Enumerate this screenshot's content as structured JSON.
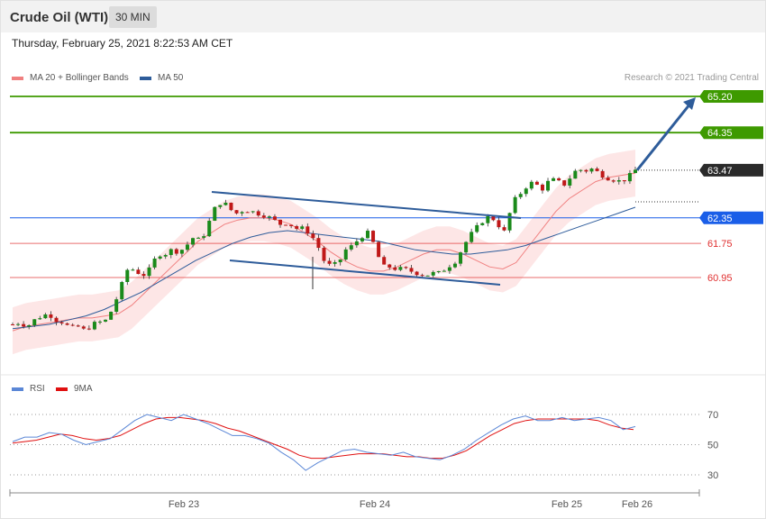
{
  "header": {
    "title": "Crude Oil (WTI)",
    "timeframe": "30 MIN"
  },
  "timestamp": "Thursday, February 25, 2021 8:22:53 AM CET",
  "legend": {
    "ma20": {
      "label": "MA 20 + Bollinger Bands",
      "color": "#f08080"
    },
    "ma50": {
      "label": "MA 50",
      "color": "#2e5c9a"
    }
  },
  "credit": "Research © 2021 Trading Central",
  "rsi_legend": {
    "rsi": {
      "label": "RSI",
      "color": "#5b87d6"
    },
    "ma9": {
      "label": "9MA",
      "color": "#e01010"
    }
  },
  "chart_data": {
    "type": "candlestick",
    "instrument": "Crude Oil (WTI)",
    "timeframe": "30 MIN",
    "current_price": 63.47,
    "levels": [
      {
        "value": 65.2,
        "label": "65.20",
        "kind": "resistance",
        "color": "#3e9a00"
      },
      {
        "value": 64.35,
        "label": "64.35",
        "kind": "resistance",
        "color": "#3e9a00"
      },
      {
        "value": 63.47,
        "label": "63.47",
        "kind": "last",
        "color": "#2a2a2a"
      },
      {
        "value": 62.35,
        "label": "62.35",
        "kind": "pivot",
        "color": "#1a5ee8"
      },
      {
        "value": 61.75,
        "label": "61.75",
        "kind": "support",
        "color": "#e03030"
      },
      {
        "value": 60.95,
        "label": "60.95",
        "kind": "support",
        "color": "#e03030"
      }
    ],
    "x_tick_labels": [
      "Feb 23",
      "Feb 24",
      "Feb 25",
      "Feb 26"
    ],
    "y_range": [
      58.6,
      66.2
    ],
    "close_path": [
      59.85,
      59.9,
      59.8,
      59.95,
      60.05,
      60.1,
      59.95,
      59.9,
      59.75,
      59.8,
      59.7,
      59.85,
      59.9,
      59.95,
      60.3,
      60.75,
      61.2,
      61.1,
      61.0,
      61.15,
      61.5,
      61.5,
      61.6,
      61.55,
      61.7,
      61.9,
      61.8,
      62.2,
      62.6,
      62.75,
      62.55,
      62.45,
      62.55,
      62.5,
      62.45,
      62.4,
      62.3,
      62.2,
      62.25,
      62.1,
      62.1,
      62.0,
      61.75,
      61.35,
      61.2,
      61.3,
      61.6,
      61.7,
      61.9,
      62.0,
      61.7,
      61.2,
      61.2,
      61.15,
      61.15,
      61.1,
      61.05,
      61.0,
      61.05,
      61.05,
      61.2,
      61.3,
      61.6,
      61.9,
      62.1,
      62.3,
      62.4,
      62.2,
      62.0,
      62.7,
      62.9,
      63.1,
      63.2,
      63.0,
      63.2,
      63.25,
      63.1,
      63.3,
      63.5,
      63.45,
      63.5,
      63.4,
      63.3,
      63.25,
      63.2,
      63.3,
      63.47
    ],
    "ma20_path": [
      59.7,
      59.8,
      59.85,
      59.9,
      59.95,
      60.0,
      60.0,
      60.05,
      60.1,
      60.3,
      60.6,
      60.9,
      61.2,
      61.5,
      61.8,
      62.0,
      62.2,
      62.3,
      62.35,
      62.35,
      62.3,
      62.2,
      62.0,
      61.8,
      61.55,
      61.35,
      61.2,
      61.1,
      61.1,
      61.2,
      61.35,
      61.5,
      61.6,
      61.6,
      61.5,
      61.35,
      61.2,
      61.15,
      61.3,
      61.7,
      62.1,
      62.5,
      62.8,
      63.0,
      63.2,
      63.3,
      63.35,
      63.4
    ],
    "ma50_path": [
      59.75,
      59.8,
      59.85,
      59.95,
      60.05,
      60.2,
      60.4,
      60.6,
      60.85,
      61.1,
      61.35,
      61.55,
      61.75,
      61.9,
      62.0,
      62.05,
      62.0,
      61.95,
      61.9,
      61.85,
      61.8,
      61.7,
      61.6,
      61.55,
      61.5,
      61.5,
      61.55,
      61.6,
      61.7,
      61.85,
      62.0,
      62.15,
      62.3,
      62.45,
      62.6
    ],
    "channel": {
      "upper": [
        [
          235,
          213
        ],
        [
          578,
          242
        ]
      ],
      "lower": [
        [
          255,
          289
        ],
        [
          555,
          316
        ]
      ]
    },
    "forecast_arrow": {
      "from_price": 63.47,
      "to_price": 65.2
    },
    "rsi": {
      "range": [
        20,
        80
      ],
      "ticks": [
        70,
        50,
        30
      ],
      "rsi_path": [
        52,
        55,
        55,
        58,
        57,
        53,
        50,
        52,
        54,
        60,
        66,
        70,
        68,
        66,
        70,
        67,
        64,
        60,
        56,
        56,
        54,
        51,
        45,
        40,
        33,
        38,
        42,
        46,
        47,
        45,
        44,
        43,
        45,
        42,
        41,
        40,
        43,
        47,
        53,
        58,
        63,
        67,
        69,
        66,
        66,
        68,
        66,
        67,
        68,
        66,
        60,
        62
      ],
      "ma9_path": [
        51,
        52,
        53,
        55,
        57,
        56,
        54,
        53,
        54,
        56,
        60,
        64,
        67,
        68,
        68,
        67,
        66,
        64,
        61,
        59,
        56,
        53,
        50,
        47,
        43,
        41,
        41,
        42,
        43,
        44,
        44,
        44,
        43,
        42,
        42,
        41,
        41,
        43,
        46,
        51,
        56,
        60,
        64,
        66,
        67,
        67,
        67,
        67,
        67,
        66,
        63,
        61,
        60
      ]
    }
  }
}
